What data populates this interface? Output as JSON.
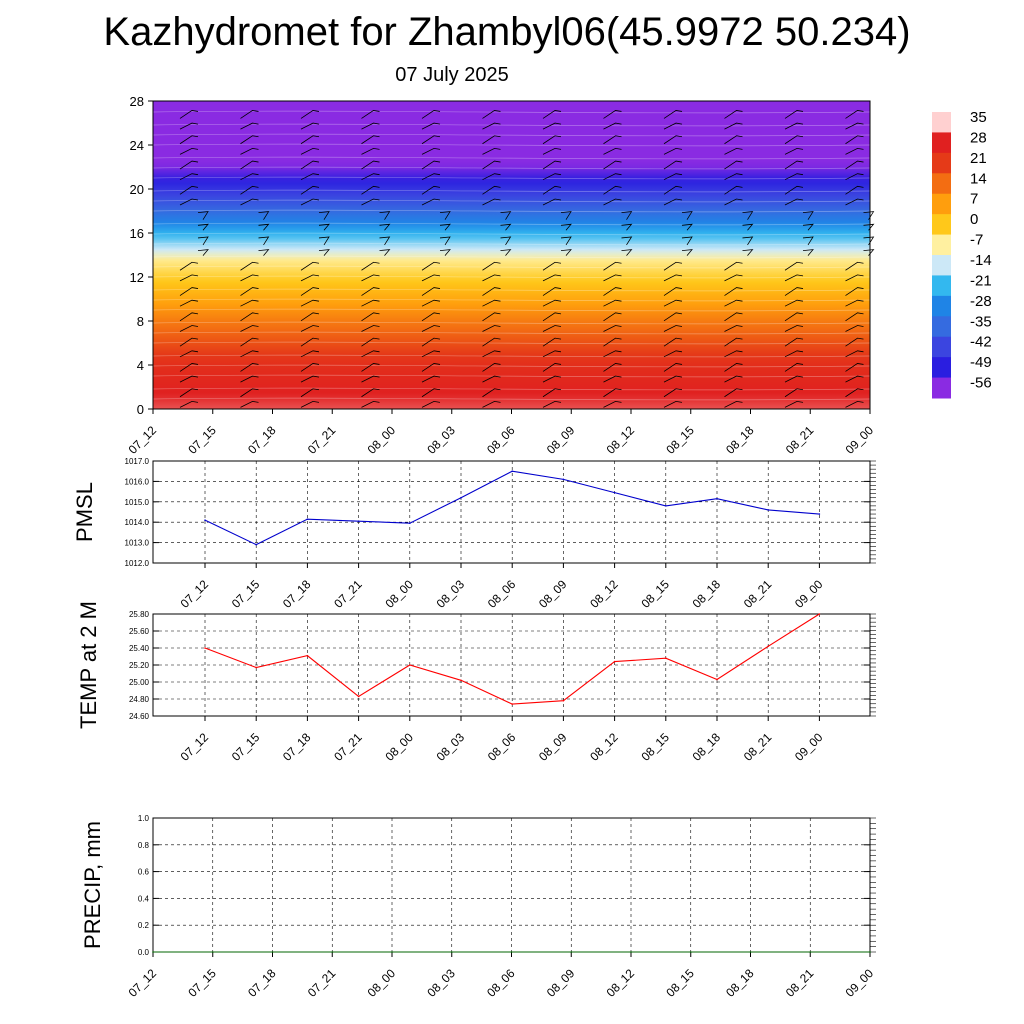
{
  "header": {
    "title": "Kazhydromet for Zhambyl06(45.9972 50.234)",
    "date": "07 July 2025"
  },
  "chart_data": [
    {
      "type": "heatmap",
      "name": "vertical-temperature-wind",
      "x_labels": [
        "07_12",
        "07_15",
        "07_18",
        "07_21",
        "08_00",
        "08_03",
        "08_06",
        "08_09",
        "08_12",
        "08_15",
        "08_18",
        "08_21",
        "09_00"
      ],
      "y_ticks": [
        0,
        4,
        8,
        12,
        16,
        20,
        24,
        28
      ],
      "ylim": [
        0,
        28
      ],
      "colorbar": {
        "labels": [
          "35",
          "28",
          "21",
          "14",
          "7",
          "0",
          "-7",
          "-14",
          "-21",
          "-28",
          "-35",
          "-42",
          "-49",
          "-56"
        ],
        "colors": [
          "#ffd0d0",
          "#e02020",
          "#e53a18",
          "#f36d12",
          "#ff9e0d",
          "#ffc81a",
          "#fff0a0",
          "#cce8f7",
          "#33b8ef",
          "#1f84e6",
          "#356be0",
          "#3b45e0",
          "#2a1ee0",
          "#8a2be2"
        ]
      },
      "temperature_profile": [
        {
          "height": 0,
          "temp": 30
        },
        {
          "height": 4,
          "temp": 24
        },
        {
          "height": 8,
          "temp": 12
        },
        {
          "height": 11,
          "temp": 2
        },
        {
          "height": 13.5,
          "temp": -6
        },
        {
          "height": 14.5,
          "temp": -14
        },
        {
          "height": 16,
          "temp": -22
        },
        {
          "height": 18,
          "temp": -35
        },
        {
          "height": 20,
          "temp": -45
        },
        {
          "height": 22,
          "temp": -55
        },
        {
          "height": 24,
          "temp": -58
        },
        {
          "height": 28,
          "temp": -60
        }
      ],
      "wind_barbs": "present"
    },
    {
      "type": "line",
      "name": "pmsl",
      "ylabel": "PMSL",
      "categories": [
        "07_12",
        "07_15",
        "07_18",
        "07_21",
        "08_00",
        "08_03",
        "08_06",
        "08_09",
        "08_12",
        "08_15",
        "08_18",
        "08_21",
        "09_00"
      ],
      "values": [
        1014.1,
        1012.9,
        1014.15,
        1014.05,
        1013.95,
        1015.2,
        1016.5,
        1016.1,
        1015.45,
        1014.8,
        1015.15,
        1014.6,
        1014.4
      ],
      "ylim": [
        1012.0,
        1017.0
      ],
      "y_ticks": [
        "1012.0",
        "1013.0",
        "1014.0",
        "1015.0",
        "1016.0",
        "1017.0"
      ],
      "color": "#0000cc"
    },
    {
      "type": "line",
      "name": "temp-2m",
      "ylabel": "TEMP at 2 M",
      "categories": [
        "07_12",
        "07_15",
        "07_18",
        "07_21",
        "08_00",
        "08_03",
        "08_06",
        "08_09",
        "08_12",
        "08_15",
        "08_18",
        "08_21",
        "09_00"
      ],
      "values": [
        25.4,
        25.17,
        25.31,
        24.83,
        25.2,
        25.02,
        24.74,
        24.78,
        25.24,
        25.28,
        25.03,
        25.42,
        25.8
      ],
      "ylim": [
        24.6,
        25.8
      ],
      "y_ticks": [
        "24.60",
        "24.80",
        "25.00",
        "25.20",
        "25.40",
        "25.60",
        "25.80"
      ],
      "color": "#ff0000"
    },
    {
      "type": "line",
      "name": "precip",
      "ylabel": "PRECIP, mm",
      "categories": [
        "07_12",
        "07_15",
        "07_18",
        "07_21",
        "08_00",
        "08_03",
        "08_06",
        "08_09",
        "08_12",
        "08_15",
        "08_18",
        "08_21",
        "09_00"
      ],
      "values": [
        0,
        0,
        0,
        0,
        0,
        0,
        0,
        0,
        0,
        0,
        0,
        0,
        0
      ],
      "ylim": [
        0.0,
        1.0
      ],
      "y_ticks": [
        "0.0",
        "0.2",
        "0.4",
        "0.6",
        "0.8",
        "1.0"
      ],
      "color": "#006400"
    }
  ]
}
